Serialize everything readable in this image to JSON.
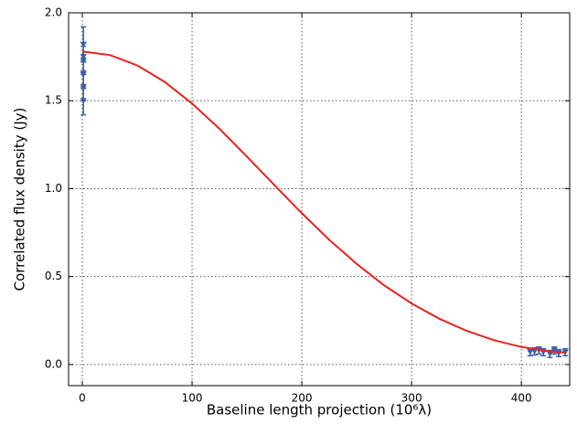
{
  "chart_data": {
    "type": "scatter",
    "x_label": "Baseline length projection (10⁶λ)",
    "y_label": "Correlated flux density (Jy)",
    "xlim": [
      -12.5,
      444
    ],
    "ylim": [
      -0.12,
      2.0
    ],
    "xticks": [
      0,
      100,
      200,
      300,
      400
    ],
    "yticks": [
      {
        "value": 0,
        "label": "0.0"
      },
      {
        "value": 0.5,
        "label": "0.5"
      },
      {
        "value": 1,
        "label": "1.0"
      },
      {
        "value": 1.5,
        "label": "1.5"
      },
      {
        "value": 2,
        "label": "2.0"
      }
    ],
    "grid": true,
    "series": [
      {
        "type": "errorbar",
        "color": "#3a5fa8",
        "x": [
          1,
          1,
          1,
          1,
          1,
          1,
          408,
          412,
          416,
          420,
          426,
          430,
          434,
          440
        ],
        "values": [
          1.82,
          1.75,
          1.73,
          1.65,
          1.58,
          1.5,
          0.07,
          0.075,
          0.08,
          0.07,
          0.06,
          0.08,
          0.065,
          0.07
        ],
        "errors": [
          0.1,
          0.08,
          0.08,
          0.08,
          0.08,
          0.08,
          0.02,
          0.02,
          0.02,
          0.02,
          0.02,
          0.02,
          0.02,
          0.02
        ]
      },
      {
        "type": "line",
        "color": "#e8231f",
        "x": [
          0,
          25,
          50,
          75,
          100,
          125,
          150,
          175,
          200,
          225,
          250,
          275,
          300,
          325,
          350,
          375,
          400,
          425,
          440
        ],
        "values": [
          1.78,
          1.76,
          1.701,
          1.607,
          1.484,
          1.34,
          1.182,
          1.02,
          0.86,
          0.709,
          0.572,
          0.45,
          0.347,
          0.261,
          0.192,
          0.138,
          0.1,
          0.075,
          0.068
        ]
      }
    ]
  }
}
